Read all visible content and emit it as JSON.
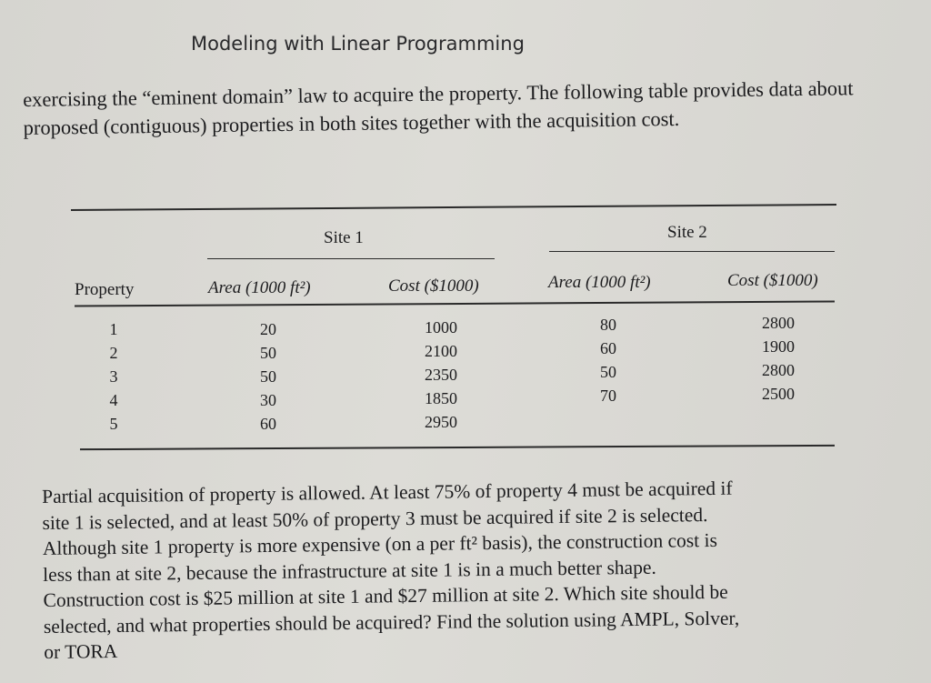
{
  "header": {
    "title": "Modeling with Linear Programming"
  },
  "intro": "exercising the “eminent domain” law to acquire the property. The following table provides data about proposed (contiguous) properties in both sites together with the acquisition cost.",
  "table": {
    "group_headers": [
      "Site 1",
      "Site 2"
    ],
    "columns": [
      "Property",
      "Area (1000 ft²)",
      "Cost ($1000)",
      "Area (1000 ft²)",
      "Cost ($1000)"
    ],
    "rows": [
      [
        "1",
        "20",
        "1000",
        "80",
        "2800"
      ],
      [
        "2",
        "50",
        "2100",
        "60",
        "1900"
      ],
      [
        "3",
        "50",
        "2350",
        "50",
        "2800"
      ],
      [
        "4",
        "30",
        "1850",
        "70",
        "2500"
      ],
      [
        "5",
        "60",
        "2950",
        "",
        ""
      ]
    ]
  },
  "problem_lines": [
    "Partial acquisition of property is allowed. At least 75% of property 4 must be acquired if",
    "site 1 is selected, and at least 50% of property 3 must be acquired if site 2 is selected.",
    "Although site 1 property is more expensive (on a per ft² basis), the construction cost is",
    "less than at site 2, because the infrastructure at site 1 is in a much better shape.",
    "Construction cost is $25 million at site 1 and $27 million at site 2. Which site should be",
    "selected, and what properties should be acquired? Find the solution using AMPL, Solver,",
    "or TORA"
  ]
}
